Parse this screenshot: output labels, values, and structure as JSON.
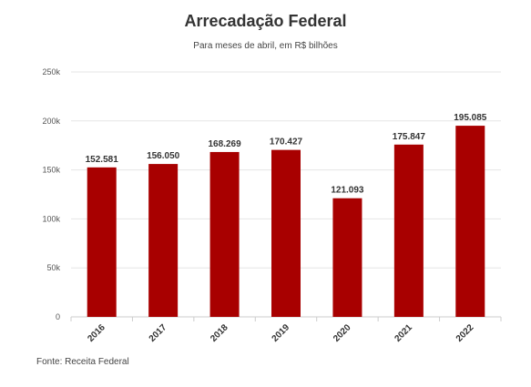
{
  "header": {
    "title": "Arrecadação Federal",
    "subtitle": "Para meses de abril, em R$ bilhões"
  },
  "footer": {
    "source": "Fonte: Receita Federal"
  },
  "colors": {
    "bar": "#a80000",
    "grid": "#e6e6e6",
    "axis": "#cccccc"
  },
  "chart_data": {
    "type": "bar",
    "title": "Arrecadação Federal",
    "subtitle": "Para meses de abril, em R$ bilhões",
    "categories": [
      "2016",
      "2017",
      "2018",
      "2019",
      "2020",
      "2021",
      "2022"
    ],
    "values": [
      152581,
      156050,
      168269,
      170427,
      121093,
      175847,
      195085
    ],
    "data_labels": [
      "152.581",
      "156.050",
      "168.269",
      "170.427",
      "121.093",
      "175.847",
      "195.085"
    ],
    "ylim": [
      0,
      250000
    ],
    "yticks": [
      0,
      50000,
      100000,
      150000,
      200000,
      250000
    ],
    "ytick_labels": [
      "0",
      "50k",
      "100k",
      "150k",
      "200k",
      "250k"
    ],
    "xlabel": "",
    "ylabel": "",
    "grid": true,
    "legend": "none"
  }
}
